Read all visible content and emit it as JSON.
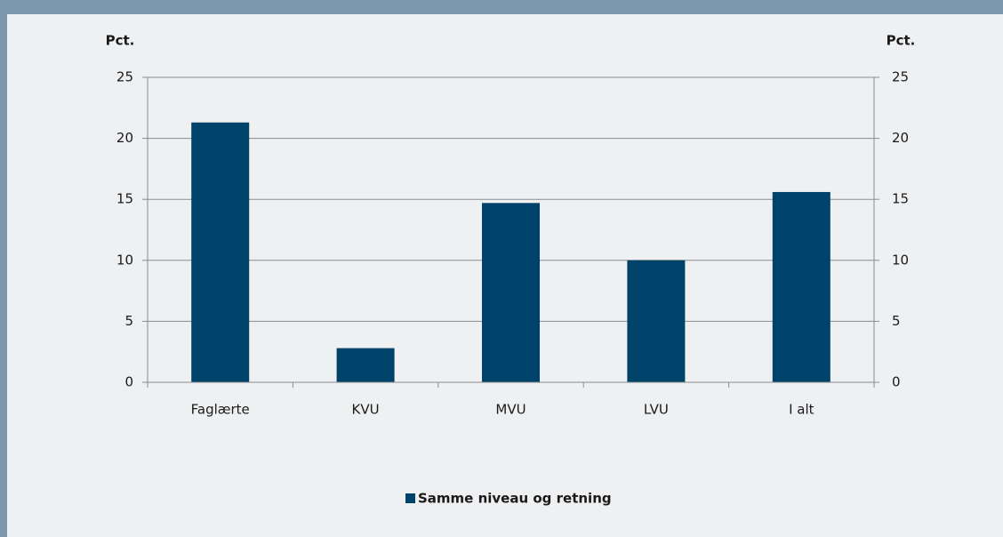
{
  "chart_data": {
    "type": "bar",
    "ylabel": "Pct.",
    "y2label": "Pct.",
    "categories": [
      "Faglærte",
      "KVU",
      "MVU",
      "LVU",
      "I alt"
    ],
    "series": [
      {
        "name": "Samme niveau og retning",
        "color": "#00436a",
        "values": [
          21.3,
          2.8,
          14.7,
          10.0,
          15.6
        ]
      }
    ],
    "ylim": [
      0,
      25
    ],
    "yticks": [
      0,
      5,
      10,
      15,
      20,
      25
    ],
    "y2lim": [
      0,
      25
    ],
    "y2ticks": [
      0,
      5,
      10,
      15,
      20,
      25
    ],
    "grid": true,
    "legend": "bottom"
  }
}
